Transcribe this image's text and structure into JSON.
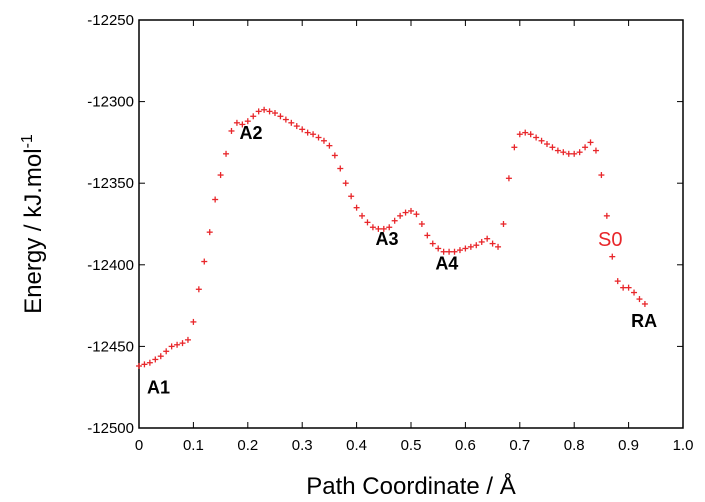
{
  "chart_data": {
    "type": "scatter",
    "xlabel": "Path Coordinate / Å",
    "ylabel": "Energy / kJ.mol",
    "ylabel_superscript": "-1",
    "xlim": [
      0,
      1.0
    ],
    "ylim": [
      -12500,
      -12250
    ],
    "x_ticks": [
      "0",
      "0.1",
      "0.2",
      "0.3",
      "0.4",
      "0.5",
      "0.6",
      "0.7",
      "0.8",
      "0.9",
      "1.0"
    ],
    "y_ticks": [
      "-12250",
      "-12300",
      "-12350",
      "-12400",
      "-12450",
      "-12500"
    ],
    "grid": false,
    "marker": "+",
    "series": [
      {
        "name": "S0",
        "color": "#e8262a",
        "points": [
          [
            0.0,
            -12462
          ],
          [
            0.01,
            -12461
          ],
          [
            0.02,
            -12460
          ],
          [
            0.03,
            -12458
          ],
          [
            0.04,
            -12456
          ],
          [
            0.05,
            -12453
          ],
          [
            0.06,
            -12450
          ],
          [
            0.07,
            -12449
          ],
          [
            0.08,
            -12448
          ],
          [
            0.09,
            -12446
          ],
          [
            0.1,
            -12435
          ],
          [
            0.11,
            -12415
          ],
          [
            0.12,
            -12398
          ],
          [
            0.13,
            -12380
          ],
          [
            0.14,
            -12360
          ],
          [
            0.15,
            -12345
          ],
          [
            0.16,
            -12332
          ],
          [
            0.17,
            -12318
          ],
          [
            0.18,
            -12313
          ],
          [
            0.19,
            -12314
          ],
          [
            0.2,
            -12312
          ],
          [
            0.21,
            -12309
          ],
          [
            0.22,
            -12306
          ],
          [
            0.23,
            -12305
          ],
          [
            0.24,
            -12306
          ],
          [
            0.25,
            -12307
          ],
          [
            0.26,
            -12309
          ],
          [
            0.27,
            -12311
          ],
          [
            0.28,
            -12313
          ],
          [
            0.29,
            -12315
          ],
          [
            0.3,
            -12317
          ],
          [
            0.31,
            -12319
          ],
          [
            0.32,
            -12320
          ],
          [
            0.33,
            -12322
          ],
          [
            0.34,
            -12324
          ],
          [
            0.35,
            -12327
          ],
          [
            0.36,
            -12333
          ],
          [
            0.37,
            -12341
          ],
          [
            0.38,
            -12350
          ],
          [
            0.39,
            -12358
          ],
          [
            0.4,
            -12365
          ],
          [
            0.41,
            -12370
          ],
          [
            0.42,
            -12374
          ],
          [
            0.43,
            -12377
          ],
          [
            0.44,
            -12378
          ],
          [
            0.45,
            -12378
          ],
          [
            0.46,
            -12377
          ],
          [
            0.47,
            -12373
          ],
          [
            0.48,
            -12370
          ],
          [
            0.49,
            -12368
          ],
          [
            0.5,
            -12367
          ],
          [
            0.51,
            -12369
          ],
          [
            0.52,
            -12375
          ],
          [
            0.53,
            -12382
          ],
          [
            0.54,
            -12387
          ],
          [
            0.55,
            -12390
          ],
          [
            0.56,
            -12392
          ],
          [
            0.57,
            -12392
          ],
          [
            0.58,
            -12392
          ],
          [
            0.59,
            -12391
          ],
          [
            0.6,
            -12390
          ],
          [
            0.61,
            -12389
          ],
          [
            0.62,
            -12388
          ],
          [
            0.63,
            -12386
          ],
          [
            0.64,
            -12384
          ],
          [
            0.65,
            -12387
          ],
          [
            0.66,
            -12389
          ],
          [
            0.67,
            -12375
          ],
          [
            0.68,
            -12347
          ],
          [
            0.69,
            -12328
          ],
          [
            0.7,
            -12320
          ],
          [
            0.71,
            -12319
          ],
          [
            0.72,
            -12320
          ],
          [
            0.73,
            -12322
          ],
          [
            0.74,
            -12324
          ],
          [
            0.75,
            -12326
          ],
          [
            0.76,
            -12328
          ],
          [
            0.77,
            -12330
          ],
          [
            0.78,
            -12331
          ],
          [
            0.79,
            -12332
          ],
          [
            0.8,
            -12332
          ],
          [
            0.81,
            -12331
          ],
          [
            0.82,
            -12328
          ],
          [
            0.83,
            -12325
          ],
          [
            0.84,
            -12330
          ],
          [
            0.85,
            -12345
          ],
          [
            0.86,
            -12370
          ],
          [
            0.87,
            -12395
          ],
          [
            0.88,
            -12410
          ],
          [
            0.89,
            -12414
          ],
          [
            0.9,
            -12414
          ],
          [
            0.91,
            -12417
          ],
          [
            0.92,
            -12421
          ],
          [
            0.93,
            -12424
          ]
        ]
      }
    ],
    "annotations": [
      {
        "text": "A1",
        "x": 0.0,
        "y": -12479
      },
      {
        "text": "A2",
        "x": 0.17,
        "y": -12323
      },
      {
        "text": "A3",
        "x": 0.42,
        "y": -12388
      },
      {
        "text": "A4",
        "x": 0.53,
        "y": -12403
      },
      {
        "text": "RA",
        "x": 0.89,
        "y": -12438
      }
    ]
  }
}
